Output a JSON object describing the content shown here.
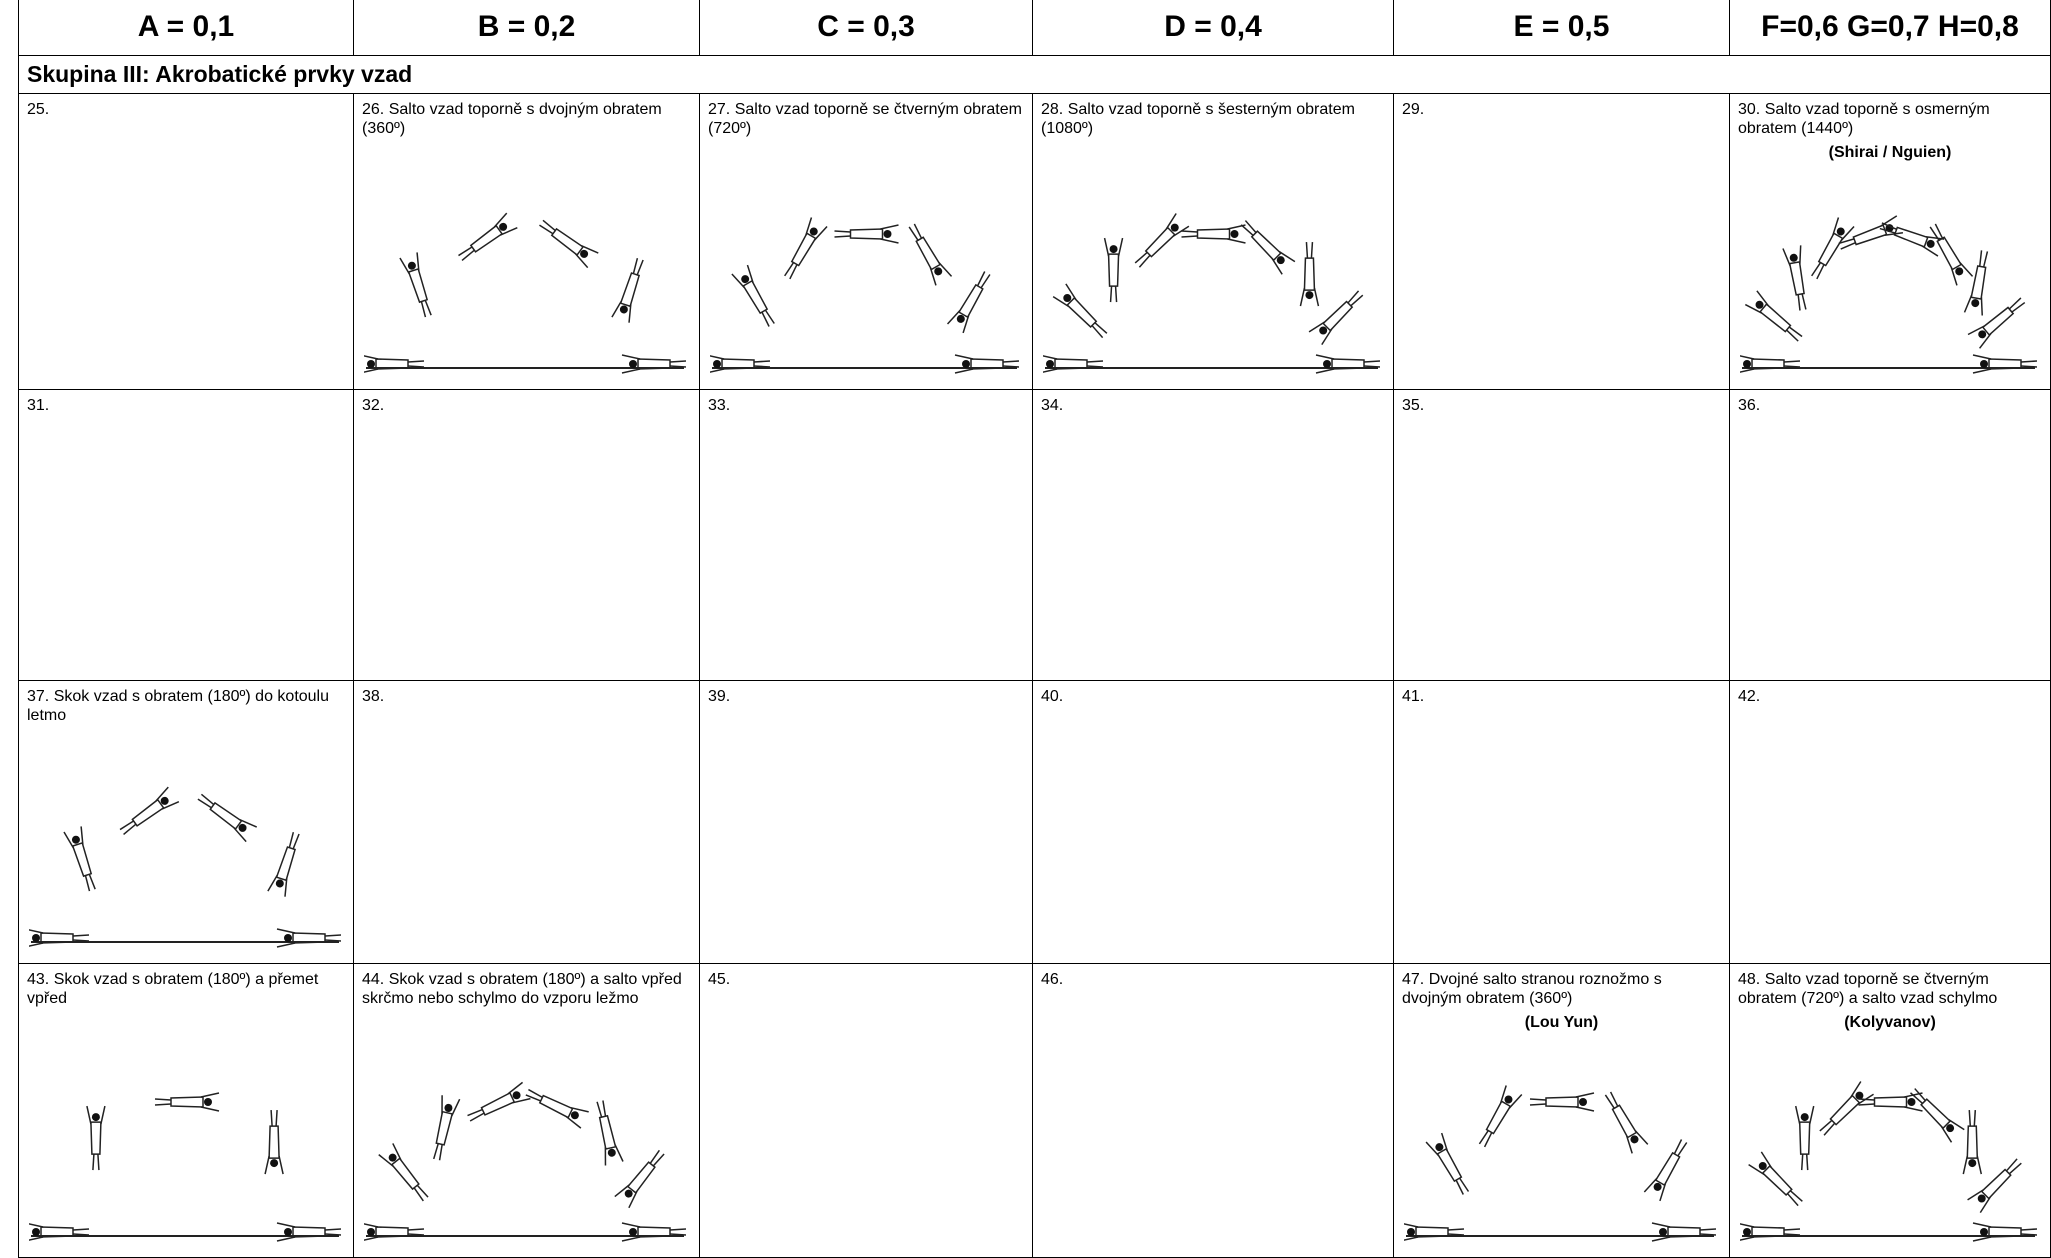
{
  "header": [
    "A = 0,1",
    "B = 0,2",
    "C = 0,3",
    "D = 0,4",
    "E = 0,5",
    "F=0,6 G=0,7 H=0,8"
  ],
  "section": "Skupina III: Akrobatické prvky vzad",
  "rows": [
    [
      {
        "text": "25."
      },
      {
        "text": "26. Salto vzad toporně s dvojným obratem (360º)"
      },
      {
        "text": "27. Salto vzad toporně se čtverným obratem (720º)"
      },
      {
        "text": "28. Salto vzad toporně s šesterným obratem (1080º)"
      },
      {
        "text": "29."
      },
      {
        "text": "30. Salto vzad toporně s osmerným obratem (1440º)",
        "name": "(Shirai / Nguien)"
      }
    ],
    [
      {
        "text": "31."
      },
      {
        "text": "32."
      },
      {
        "text": "33."
      },
      {
        "text": "34."
      },
      {
        "text": "35."
      },
      {
        "text": "36."
      }
    ],
    [
      {
        "text": "37. Skok vzad s obratem (180º) do kotoulu letmo"
      },
      {
        "text": "38."
      },
      {
        "text": "39."
      },
      {
        "text": "40."
      },
      {
        "text": "41."
      },
      {
        "text": "42."
      }
    ],
    [
      {
        "text": "43. Skok vzad s obratem (180º) a přemet vpřed"
      },
      {
        "text": "44. Skok vzad s obratem (180º) a salto vpřed skrčmo nebo schylmo do vzporu ležmo"
      },
      {
        "text": "45."
      },
      {
        "text": "46."
      },
      {
        "text": "47. Dvojné salto stranou roznožmo s dvojným obratem (360º)",
        "name": "(Lou Yun)"
      },
      {
        "text": "48. Salto vzad toporně se čtverným obratem (720º) a salto vzad schylmo",
        "name": "(Kolyvanov)"
      }
    ]
  ]
}
